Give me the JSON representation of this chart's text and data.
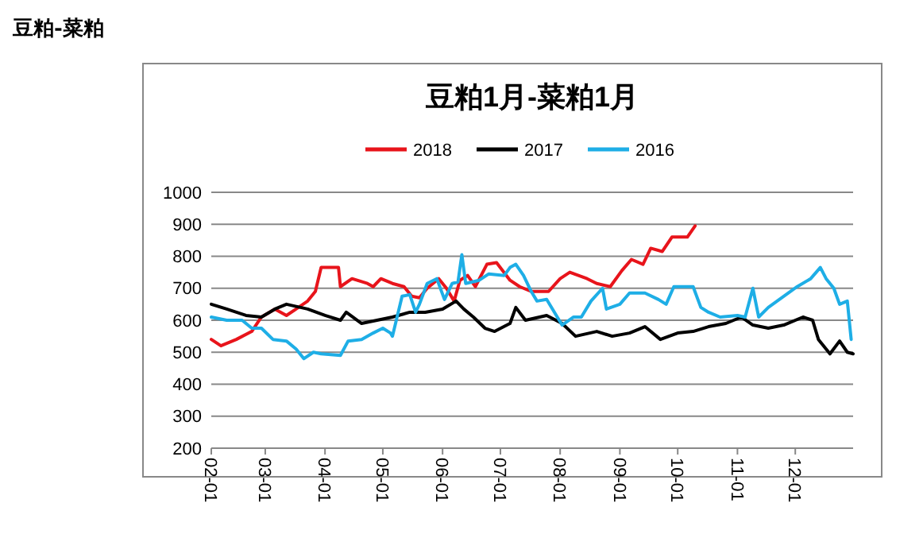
{
  "chart_data": {
    "type": "line",
    "title": "豆粕1月-菜粕1月",
    "annotations": [
      "豆粕-菜粕"
    ],
    "xlim": [
      "--02-01",
      "--12-31"
    ],
    "xticks": [
      {
        "value": "--02-01",
        "label": "02-01"
      },
      {
        "value": "--03-01",
        "label": "03-01"
      },
      {
        "value": "--04-01",
        "label": "04-01"
      },
      {
        "value": "--05-01",
        "label": "05-01"
      },
      {
        "value": "--06-01",
        "label": "06-01"
      },
      {
        "value": "--07-01",
        "label": "07-01"
      },
      {
        "value": "--08-01",
        "label": "08-01"
      },
      {
        "value": "--09-01",
        "label": "09-01"
      },
      {
        "value": "--10-01",
        "label": "10-01"
      },
      {
        "value": "--11-01",
        "label": "11-01"
      },
      {
        "value": "--12-01",
        "label": "12-01"
      }
    ],
    "ylim": [
      200,
      1000
    ],
    "yticks": [
      200,
      300,
      400,
      500,
      600,
      700,
      800,
      900,
      1000
    ],
    "grid": "y",
    "legend": "top",
    "marker": "none",
    "line_style": "solid",
    "series": [
      {
        "name": "2018",
        "color": "#e8141b",
        "x": [
          "--02-01",
          "--02-06",
          "--02-14",
          "--02-22",
          "--02-27",
          "--03-06",
          "--03-12",
          "--03-17",
          "--03-23",
          "--03-27",
          "--03-30",
          "--04-08",
          "--04-09",
          "--04-15",
          "--04-23",
          "--04-26",
          "--04-30",
          "--05-06",
          "--05-12",
          "--05-16",
          "--05-20",
          "--05-24",
          "--05-30",
          "--06-03",
          "--06-07",
          "--06-10",
          "--06-14",
          "--06-18",
          "--06-24",
          "--06-29",
          "--07-06",
          "--07-11",
          "--07-17",
          "--07-26",
          "--08-01",
          "--08-06",
          "--08-15",
          "--08-20",
          "--08-27",
          "--09-02",
          "--09-07",
          "--09-13",
          "--09-17",
          "--09-23",
          "--09-28",
          "--10-06",
          "--10-10"
        ],
        "values": [
          540,
          520,
          540,
          565,
          610,
          635,
          615,
          635,
          660,
          690,
          765,
          765,
          705,
          730,
          715,
          705,
          730,
          715,
          705,
          675,
          670,
          700,
          730,
          700,
          660,
          725,
          740,
          705,
          775,
          780,
          725,
          705,
          690,
          690,
          730,
          750,
          730,
          715,
          705,
          755,
          790,
          775,
          825,
          815,
          860,
          860,
          895
        ]
      },
      {
        "name": "2017",
        "color": "#000000",
        "x": [
          "--02-01",
          "--02-09",
          "--02-19",
          "--02-27",
          "--03-06",
          "--03-12",
          "--03-23",
          "--04-01",
          "--04-09",
          "--04-12",
          "--04-20",
          "--04-28",
          "--05-06",
          "--05-15",
          "--05-23",
          "--06-01",
          "--06-08",
          "--06-12",
          "--06-17",
          "--06-23",
          "--06-28",
          "--07-06",
          "--07-09",
          "--07-14",
          "--07-25",
          "--08-02",
          "--08-09",
          "--08-20",
          "--08-28",
          "--09-06",
          "--09-14",
          "--09-22",
          "--10-01",
          "--10-09",
          "--10-17",
          "--10-26",
          "--11-03",
          "--11-09",
          "--11-17",
          "--11-25",
          "--12-05",
          "--12-10",
          "--12-13",
          "--12-19",
          "--12-24",
          "--12-28",
          "--12-31"
        ],
        "values": [
          650,
          635,
          615,
          610,
          635,
          650,
          635,
          615,
          600,
          625,
          590,
          600,
          610,
          625,
          625,
          635,
          660,
          635,
          610,
          575,
          565,
          590,
          640,
          600,
          615,
          590,
          550,
          565,
          550,
          560,
          580,
          540,
          560,
          565,
          580,
          590,
          610,
          585,
          575,
          585,
          610,
          600,
          540,
          495,
          535,
          500,
          495
        ]
      },
      {
        "name": "2016",
        "color": "#1eaee6",
        "x": [
          "--02-01",
          "--02-09",
          "--02-17",
          "--02-22",
          "--02-27",
          "--03-05",
          "--03-12",
          "--03-17",
          "--03-21",
          "--03-26",
          "--03-30",
          "--04-09",
          "--04-13",
          "--04-20",
          "--04-26",
          "--05-01",
          "--05-05",
          "--05-06",
          "--05-11",
          "--05-15",
          "--05-18",
          "--05-20",
          "--05-24",
          "--05-29",
          "--06-02",
          "--06-06",
          "--06-09",
          "--06-11",
          "--06-13",
          "--06-20",
          "--06-25",
          "--07-03",
          "--07-06",
          "--07-09",
          "--07-13",
          "--07-17",
          "--07-20",
          "--07-25",
          "--08-02",
          "--08-08",
          "--08-12",
          "--08-17",
          "--08-23",
          "--08-25",
          "--09-01",
          "--09-06",
          "--09-14",
          "--09-21",
          "--09-25",
          "--09-29",
          "--10-09",
          "--10-13",
          "--10-17",
          "--10-23",
          "--11-01",
          "--11-05",
          "--11-09",
          "--11-12",
          "--11-17",
          "--11-25",
          "--12-02",
          "--12-09",
          "--12-14",
          "--12-17",
          "--12-21",
          "--12-24",
          "--12-28",
          "--12-30"
        ],
        "values": [
          610,
          600,
          600,
          575,
          575,
          540,
          535,
          510,
          480,
          500,
          495,
          490,
          535,
          540,
          560,
          575,
          560,
          550,
          675,
          680,
          625,
          650,
          715,
          730,
          665,
          715,
          720,
          805,
          715,
          725,
          745,
          740,
          765,
          775,
          740,
          690,
          660,
          665,
          585,
          610,
          610,
          660,
          700,
          635,
          650,
          685,
          685,
          665,
          650,
          705,
          705,
          640,
          625,
          610,
          615,
          610,
          700,
          610,
          640,
          675,
          705,
          730,
          765,
          730,
          700,
          650,
          660,
          540
        ]
      }
    ]
  }
}
